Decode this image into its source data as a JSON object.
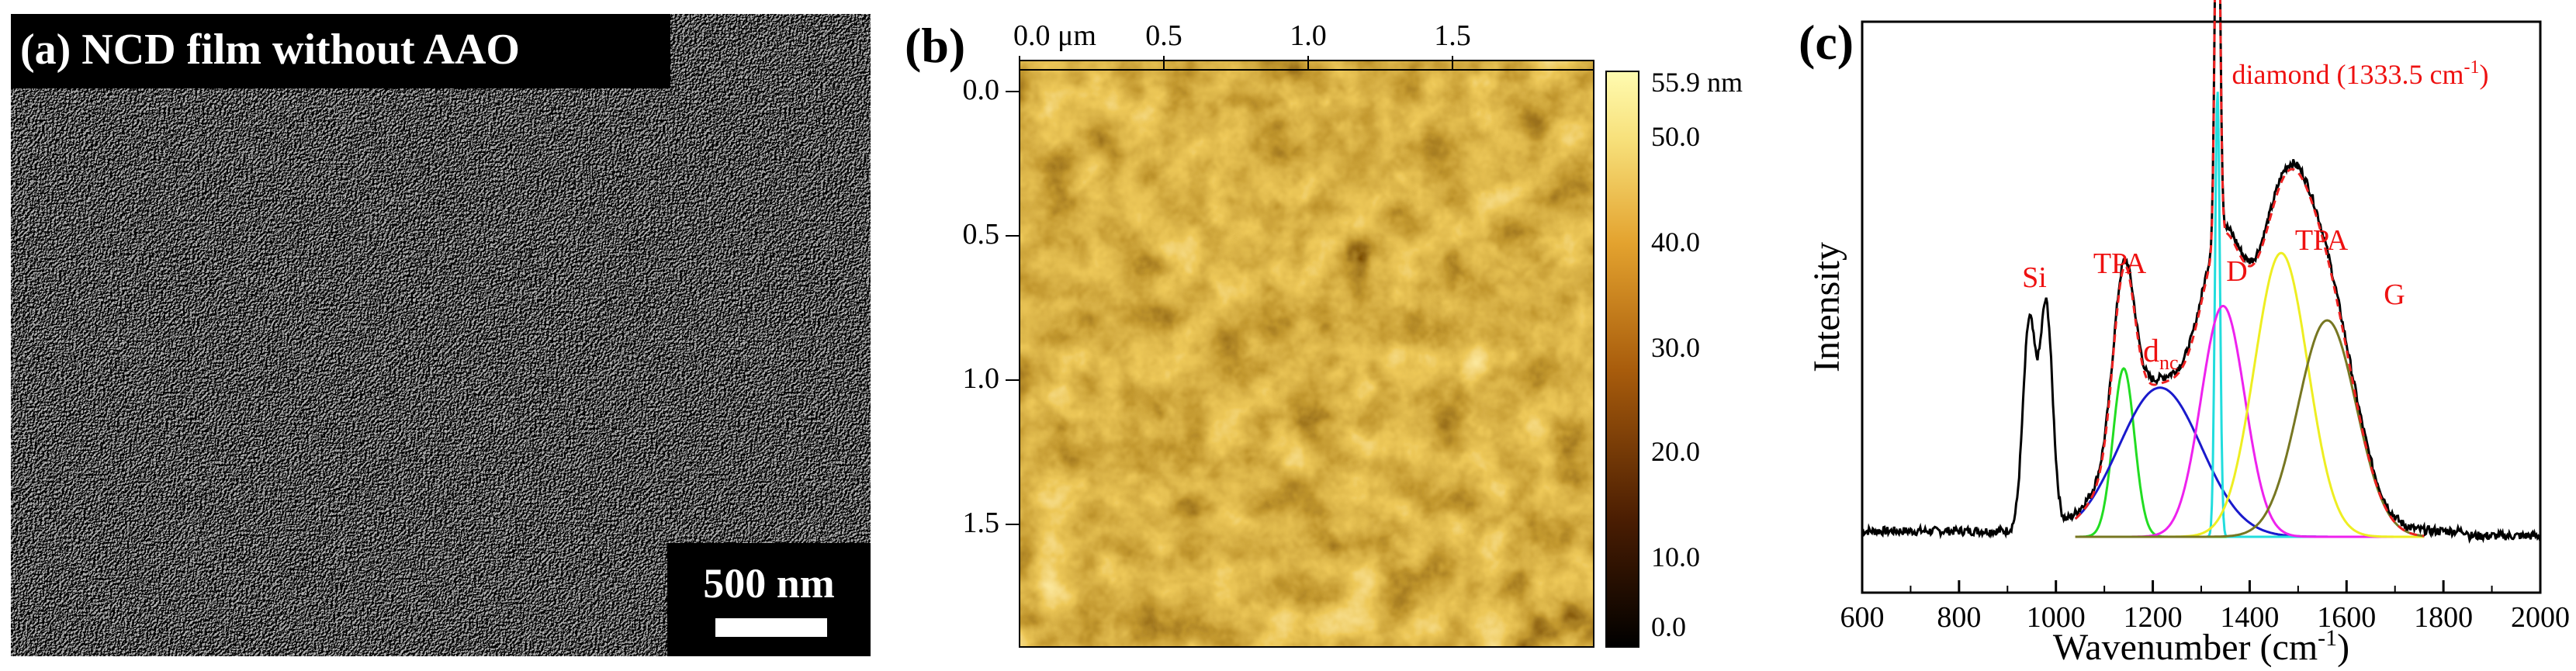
{
  "panel_a": {
    "label": "(a) NCD film without AAO",
    "scalebar_label": "500 nm"
  },
  "panel_b": {
    "label": "(b)",
    "x_ticks": [
      "0.0 μm",
      "0.5",
      "1.0",
      "1.5"
    ],
    "y_ticks": [
      "0.0",
      "0.5",
      "1.0",
      "1.5"
    ],
    "colorbar_ticks": [
      "55.9 nm",
      "50.0",
      "40.0",
      "30.0",
      "20.0",
      "10.0",
      "0.0"
    ],
    "colors": {
      "low": "#000000",
      "mid": "#c57a14",
      "high": "#fff8a0"
    }
  },
  "chart_data": {
    "type": "line",
    "panel_label": "(c)",
    "xlabel": "Wavenumber (cm",
    "xlabel_sup": "-1",
    "xlabel_tail": ")",
    "ylabel": "Intensity",
    "xlim": [
      600,
      2000
    ],
    "x_ticks": [
      "600",
      "800",
      "1000",
      "1200",
      "1400",
      "1600",
      "1800",
      "2000"
    ],
    "annotations": {
      "si": "Si",
      "tpa_left": "TPA",
      "dnc_main": "d",
      "dnc_sub": "nc",
      "diamond_main": "diamond (1333.5 cm",
      "diamond_sup": "-1",
      "diamond_tail": ")",
      "d_band": "D",
      "tpa_right": "TPA",
      "g_band": "G"
    },
    "fit_components": [
      {
        "center": 1140,
        "width": 22,
        "amplitude": 0.35,
        "color": "#22dd22"
      },
      {
        "center": 1215,
        "width": 85,
        "amplitude": 0.31,
        "color": "#1a1acc"
      },
      {
        "center": 1333.5,
        "width": 5,
        "amplitude": 0.93,
        "color": "#22dddd"
      },
      {
        "center": 1345,
        "width": 45,
        "amplitude": 0.48,
        "color": "#ee22ee"
      },
      {
        "center": 1465,
        "width": 55,
        "amplitude": 0.59,
        "color": "#eeee22"
      },
      {
        "center": 1560,
        "width": 60,
        "amplitude": 0.45,
        "color": "#777722"
      }
    ],
    "colors": {
      "measured": "#000000",
      "fit_sum": "#ee2222",
      "labels": "#ee1111"
    }
  }
}
